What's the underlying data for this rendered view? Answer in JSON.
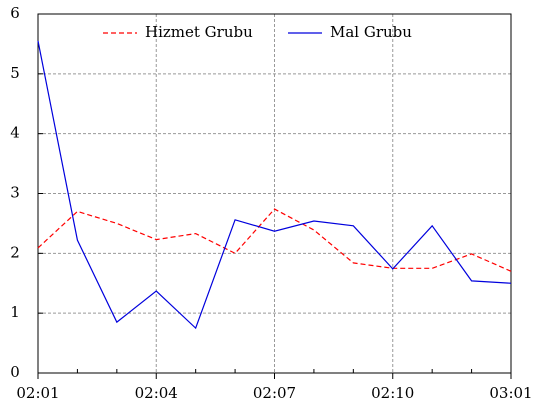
{
  "chart_data": {
    "type": "line",
    "categories": [
      "02:01",
      null,
      null,
      "02:04",
      null,
      null,
      "02:07",
      null,
      null,
      "02:10",
      null,
      null,
      "03:01"
    ],
    "series": [
      {
        "name": "Hizmet Grubu",
        "color": "#ff0000",
        "dash": true,
        "values": [
          2.09,
          2.7,
          2.5,
          2.23,
          2.33,
          2.0,
          2.74,
          2.39,
          1.84,
          1.75,
          1.75,
          1.99,
          1.7
        ]
      },
      {
        "name": "Mal Grubu",
        "color": "#0000dd",
        "dash": false,
        "values": [
          5.55,
          2.22,
          0.85,
          1.37,
          0.75,
          2.56,
          2.37,
          2.54,
          2.46,
          1.74,
          2.46,
          1.54,
          1.5
        ]
      }
    ],
    "ylim": [
      0,
      6
    ],
    "yticks": [
      0,
      1,
      2,
      3,
      4,
      5,
      6
    ],
    "grid": true,
    "legend": "top"
  }
}
